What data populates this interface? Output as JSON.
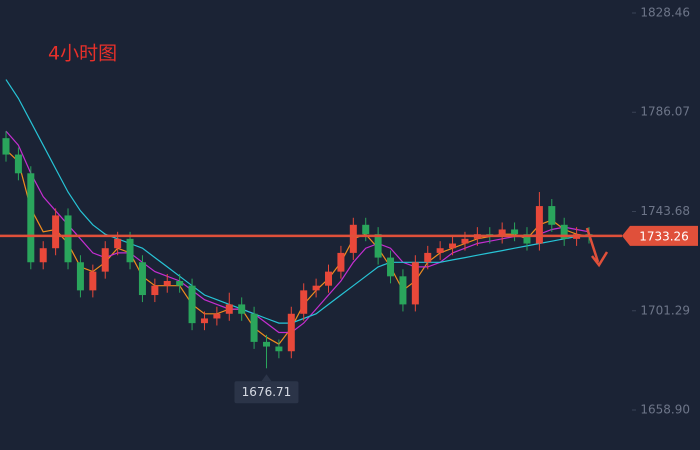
{
  "chart_data": {
    "type": "candlestick",
    "title": "4小时图",
    "open": [
      1775,
      1768,
      1760,
      1722,
      1728,
      1742,
      1722,
      1710,
      1718,
      1728,
      1732,
      1722,
      1708,
      1712,
      1714,
      1712,
      1696,
      1698,
      1700,
      1704,
      1700,
      1688,
      1686,
      1684,
      1700,
      1710,
      1712,
      1718,
      1726,
      1738,
      1734,
      1724,
      1716,
      1704,
      1722,
      1726,
      1728,
      1730,
      1732,
      1734,
      1733,
      1736,
      1734,
      1730,
      1746,
      1738,
      1732,
      1734
    ],
    "high": [
      1778,
      1771,
      1763,
      1731,
      1745,
      1745,
      1725,
      1721,
      1731,
      1735,
      1735,
      1725,
      1715,
      1717,
      1717,
      1715,
      1701,
      1703,
      1709,
      1707,
      1703,
      1691,
      1689,
      1703,
      1713,
      1715,
      1721,
      1729,
      1741,
      1741,
      1737,
      1727,
      1719,
      1725,
      1729,
      1731,
      1733,
      1735,
      1737,
      1737,
      1739,
      1739,
      1737,
      1752,
      1749,
      1741,
      1737,
      1737
    ],
    "low": [
      1765,
      1757,
      1719,
      1719,
      1725,
      1719,
      1707,
      1707,
      1715,
      1725,
      1719,
      1705,
      1705,
      1709,
      1709,
      1693,
      1693,
      1695,
      1697,
      1697,
      1685,
      1676.71,
      1681,
      1681,
      1697,
      1707,
      1709,
      1715,
      1723,
      1731,
      1721,
      1713,
      1701,
      1701,
      1719,
      1723,
      1725,
      1727,
      1729,
      1730,
      1730,
      1731,
      1727,
      1727,
      1735,
      1729,
      1729,
      1730
    ],
    "close": [
      1768,
      1760,
      1722,
      1728,
      1742,
      1722,
      1710,
      1718,
      1728,
      1732,
      1722,
      1708,
      1712,
      1714,
      1712,
      1696,
      1698,
      1700,
      1704,
      1700,
      1688,
      1686,
      1684,
      1700,
      1710,
      1712,
      1718,
      1726,
      1738,
      1734,
      1724,
      1716,
      1704,
      1722,
      1726,
      1728,
      1730,
      1732,
      1734,
      1733,
      1736,
      1734,
      1730,
      1746,
      1738,
      1732,
      1734,
      1733
    ],
    "up_color": "#e8483a",
    "down_color": "#2aa55c",
    "series": [
      {
        "color": "#f08c1e",
        "values": [
          1770,
          1765,
          1745,
          1735,
          1736,
          1730,
          1720,
          1718,
          1722,
          1728,
          1726,
          1716,
          1712,
          1712,
          1712,
          1704,
          1700,
          1700,
          1702,
          1702,
          1694,
          1690,
          1687,
          1694,
          1704,
          1710,
          1715,
          1722,
          1732,
          1734,
          1728,
          1720,
          1710,
          1714,
          1722,
          1726,
          1728,
          1730,
          1732,
          1733,
          1734,
          1734,
          1732,
          1738,
          1740,
          1736,
          1734,
          1733
        ]
      },
      {
        "color": "#c42ed0",
        "values": [
          1778,
          1772,
          1760,
          1750,
          1744,
          1738,
          1732,
          1726,
          1724,
          1726,
          1726,
          1722,
          1718,
          1716,
          1714,
          1710,
          1706,
          1704,
          1702,
          1702,
          1700,
          1696,
          1692,
          1692,
          1696,
          1702,
          1708,
          1714,
          1722,
          1728,
          1730,
          1728,
          1722,
          1720,
          1720,
          1722,
          1726,
          1728,
          1730,
          1731,
          1732,
          1733,
          1733,
          1734,
          1736,
          1737,
          1736,
          1735
        ]
      },
      {
        "color": "#27c4d6",
        "values": [
          1800,
          1792,
          1782,
          1772,
          1762,
          1752,
          1744,
          1738,
          1734,
          1732,
          1730,
          1728,
          1724,
          1720,
          1716,
          1712,
          1708,
          1706,
          1704,
          1702,
          1700,
          1698,
          1696,
          1696,
          1698,
          1700,
          1704,
          1708,
          1712,
          1716,
          1720,
          1722,
          1722,
          1722,
          1722,
          1722,
          1723,
          1724,
          1725,
          1726,
          1727,
          1728,
          1729,
          1730,
          1731,
          1732,
          1733,
          1733
        ]
      }
    ],
    "ref_line": 1733.26,
    "ref_color": "#e0503a",
    "ylim": [
      1641.82,
      1834.01
    ],
    "yticks": [
      1828.46,
      1786.07,
      1743.68,
      1701.29,
      {
        "value": 1658.9,
        "label": "1658.90"
      }
    ]
  }
}
